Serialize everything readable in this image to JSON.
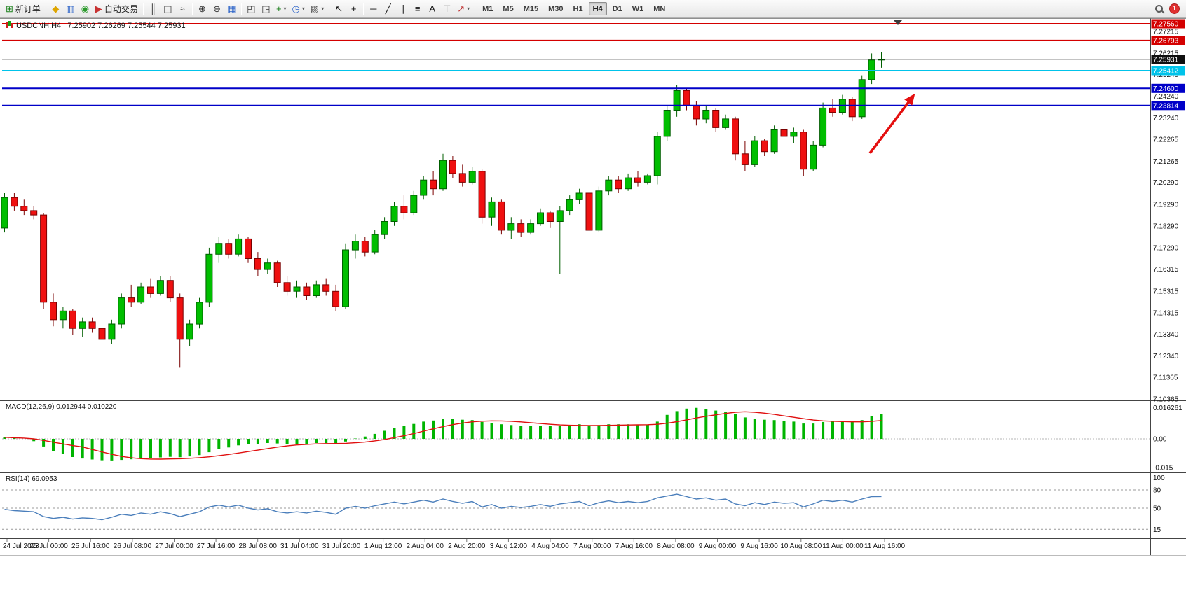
{
  "toolbar": {
    "items": [
      {
        "name": "new-order-button",
        "glyph": "⊞",
        "glyph_color": "#1a7f1a",
        "label": "新订单"
      },
      {
        "sep": true
      },
      {
        "name": "market-watch-button",
        "glyph": "◆",
        "glyph_color": "#dea500"
      },
      {
        "name": "chart-window-button",
        "glyph": "▥",
        "glyph_color": "#2a62c8"
      },
      {
        "name": "terminal-button",
        "glyph": "◉",
        "glyph_color": "#2a9a2a"
      },
      {
        "name": "autotrading-button",
        "glyph": "▶",
        "glyph_color": "#c83232",
        "label": "自动交易"
      },
      {
        "sep": true
      },
      {
        "name": "bar-chart-button",
        "glyph": "║",
        "glyph_color": "#333333"
      },
      {
        "name": "candlestick-chart-button",
        "glyph": "◫",
        "glyph_color": "#333333"
      },
      {
        "name": "line-chart-button",
        "glyph": "≈",
        "glyph_color": "#333333"
      },
      {
        "sep": true
      },
      {
        "name": "zoom-in-button",
        "glyph": "⊕",
        "glyph_color": "#333333"
      },
      {
        "name": "zoom-out-button",
        "glyph": "⊖",
        "glyph_color": "#333333"
      },
      {
        "name": "tile-windows-button",
        "glyph": "▦",
        "glyph_color": "#2a62c8"
      },
      {
        "sep": true
      },
      {
        "name": "auto-arrange-button",
        "glyph": "◰",
        "glyph_color": "#333333"
      },
      {
        "name": "cascade-windows-button",
        "glyph": "◳",
        "glyph_color": "#333333"
      },
      {
        "name": "new-chart-button",
        "glyph": "+",
        "glyph_color": "#1a7f1a",
        "dropdown": true
      },
      {
        "name": "periods-button",
        "glyph": "◷",
        "glyph_color": "#2a62c8",
        "dropdown": true
      },
      {
        "name": "templates-button",
        "glyph": "▨",
        "glyph_color": "#555555",
        "dropdown": true
      },
      {
        "sep": true
      },
      {
        "name": "cursor-button",
        "glyph": "↖",
        "glyph_color": "#111111"
      },
      {
        "name": "crosshair-button",
        "glyph": "+",
        "glyph_color": "#111111"
      },
      {
        "sep": true
      },
      {
        "name": "horizontal-line-button",
        "glyph": "─",
        "glyph_color": "#111111"
      },
      {
        "name": "trendline-button",
        "glyph": "╱",
        "glyph_color": "#111111"
      },
      {
        "name": "equidistant-channel-button",
        "glyph": "∥",
        "glyph_color": "#111111"
      },
      {
        "name": "fibonacci-button",
        "glyph": "≡",
        "glyph_color": "#111111"
      },
      {
        "name": "text-button",
        "glyph": "A",
        "glyph_color": "#111111"
      },
      {
        "name": "text-label-button",
        "glyph": "⊤",
        "glyph_color": "#111111"
      },
      {
        "name": "arrows-button",
        "glyph": "↗",
        "glyph_color": "#bb2222",
        "dropdown": true
      },
      {
        "sep": true
      }
    ],
    "timeframes": [
      "M1",
      "M5",
      "M15",
      "M30",
      "H1",
      "H4",
      "D1",
      "W1",
      "MN"
    ],
    "active_timeframe": "H4",
    "notification_count": "1"
  },
  "chart": {
    "title": "USDCNH,H4   7.25902 7.26269 7.25544 7.25931",
    "symbol": "USDCNH",
    "timeframe": "H4"
  },
  "indicators": {
    "macd_label": "MACD(12,26,9) 0.012944 0.010220",
    "rsi_label": "RSI(14) 69.0953"
  },
  "chart_data": [
    {
      "type": "candlestick",
      "symbol": "USDCNH",
      "timeframe": "H4",
      "ohlc_current": {
        "open": 7.25902,
        "high": 7.26269,
        "low": 7.25544,
        "close": 7.25931
      },
      "y_range": [
        7.10365,
        7.2756
      ],
      "up_color": "#00be00",
      "down_color": "#ef1010",
      "y_ticks": [
        "7.27215",
        "7.26215",
        "7.25240",
        "7.24240",
        "7.23240",
        "7.22265",
        "7.21265",
        "7.20290",
        "7.19290",
        "7.18290",
        "7.17290",
        "7.16315",
        "7.15315",
        "7.14315",
        "7.13340",
        "7.12340",
        "7.11365",
        "7.10365"
      ],
      "x_labels": [
        "24 Jul 2023",
        "25 Jul 00:00",
        "25 Jul 16:00",
        "26 Jul 08:00",
        "27 Jul 00:00",
        "27 Jul 16:00",
        "28 Jul 08:00",
        "31 Jul 04:00",
        "31 Jul 20:00",
        "1 Aug 12:00",
        "2 Aug 04:00",
        "2 Aug 20:00",
        "3 Aug 12:00",
        "4 Aug 04:00",
        "7 Aug 00:00",
        "7 Aug 16:00",
        "8 Aug 08:00",
        "9 Aug 00:00",
        "9 Aug 16:00",
        "10 Aug 08:00",
        "11 Aug 00:00",
        "11 Aug 16:00"
      ],
      "levels": [
        {
          "label": "7.27560",
          "color": "#d40000",
          "width": 2
        },
        {
          "label": "7.26793",
          "color": "#d40000",
          "width": 2
        },
        {
          "label": "7.25931",
          "color": "#101010",
          "width": 1,
          "current": true
        },
        {
          "label": "7.25412",
          "color": "#00c3ea",
          "width": 2
        },
        {
          "label": "7.24600",
          "color": "#0000c8",
          "width": 2
        },
        {
          "label": "7.23814",
          "color": "#0000c8",
          "width": 2
        }
      ],
      "candles": [
        [
          7.182,
          7.198,
          7.18,
          7.196
        ],
        [
          7.196,
          7.198,
          7.19,
          7.192
        ],
        [
          7.192,
          7.195,
          7.188,
          7.19
        ],
        [
          7.19,
          7.192,
          7.186,
          7.188
        ],
        [
          7.188,
          7.189,
          7.145,
          7.148
        ],
        [
          7.148,
          7.152,
          7.137,
          7.14
        ],
        [
          7.14,
          7.146,
          7.136,
          7.144
        ],
        [
          7.144,
          7.145,
          7.133,
          7.136
        ],
        [
          7.136,
          7.141,
          7.132,
          7.139
        ],
        [
          7.139,
          7.141,
          7.134,
          7.136
        ],
        [
          7.136,
          7.142,
          7.128,
          7.131
        ],
        [
          7.131,
          7.14,
          7.129,
          7.138
        ],
        [
          7.138,
          7.152,
          7.136,
          7.15
        ],
        [
          7.15,
          7.156,
          7.146,
          7.148
        ],
        [
          7.148,
          7.157,
          7.147,
          7.155
        ],
        [
          7.155,
          7.159,
          7.15,
          7.152
        ],
        [
          7.152,
          7.16,
          7.151,
          7.158
        ],
        [
          7.158,
          7.16,
          7.148,
          7.15
        ],
        [
          7.15,
          7.152,
          7.118,
          7.131
        ],
        [
          7.131,
          7.14,
          7.128,
          7.138
        ],
        [
          7.138,
          7.15,
          7.136,
          7.148
        ],
        [
          7.148,
          7.173,
          7.146,
          7.17
        ],
        [
          7.17,
          7.178,
          7.166,
          7.175
        ],
        [
          7.175,
          7.177,
          7.168,
          7.17
        ],
        [
          7.17,
          7.179,
          7.169,
          7.177
        ],
        [
          7.177,
          7.178,
          7.166,
          7.168
        ],
        [
          7.168,
          7.171,
          7.16,
          7.163
        ],
        [
          7.163,
          7.168,
          7.161,
          7.166
        ],
        [
          7.166,
          7.167,
          7.155,
          7.157
        ],
        [
          7.157,
          7.16,
          7.151,
          7.153
        ],
        [
          7.153,
          7.158,
          7.15,
          7.155
        ],
        [
          7.155,
          7.157,
          7.149,
          7.151
        ],
        [
          7.151,
          7.158,
          7.15,
          7.156
        ],
        [
          7.156,
          7.159,
          7.151,
          7.153
        ],
        [
          7.153,
          7.156,
          7.144,
          7.146
        ],
        [
          7.146,
          7.175,
          7.145,
          7.172
        ],
        [
          7.172,
          7.179,
          7.168,
          7.176
        ],
        [
          7.176,
          7.178,
          7.169,
          7.171
        ],
        [
          7.171,
          7.181,
          7.17,
          7.179
        ],
        [
          7.179,
          7.187,
          7.177,
          7.185
        ],
        [
          7.185,
          7.194,
          7.183,
          7.192
        ],
        [
          7.192,
          7.197,
          7.186,
          7.189
        ],
        [
          7.189,
          7.199,
          7.188,
          7.197
        ],
        [
          7.197,
          7.206,
          7.195,
          7.204
        ],
        [
          7.204,
          7.208,
          7.197,
          7.2
        ],
        [
          7.2,
          7.216,
          7.199,
          7.213
        ],
        [
          7.213,
          7.215,
          7.205,
          7.207
        ],
        [
          7.207,
          7.211,
          7.201,
          7.203
        ],
        [
          7.203,
          7.21,
          7.202,
          7.208
        ],
        [
          7.208,
          7.209,
          7.184,
          7.187
        ],
        [
          7.187,
          7.196,
          7.183,
          7.194
        ],
        [
          7.194,
          7.195,
          7.179,
          7.181
        ],
        [
          7.181,
          7.187,
          7.177,
          7.184
        ],
        [
          7.184,
          7.186,
          7.178,
          7.18
        ],
        [
          7.18,
          7.186,
          7.179,
          7.184
        ],
        [
          7.184,
          7.191,
          7.183,
          7.189
        ],
        [
          7.189,
          7.19,
          7.182,
          7.185
        ],
        [
          7.185,
          7.192,
          7.161,
          7.19
        ],
        [
          7.19,
          7.197,
          7.188,
          7.195
        ],
        [
          7.195,
          7.2,
          7.193,
          7.198
        ],
        [
          7.198,
          7.199,
          7.178,
          7.181
        ],
        [
          7.181,
          7.201,
          7.18,
          7.199
        ],
        [
          7.199,
          7.206,
          7.197,
          7.204
        ],
        [
          7.204,
          7.206,
          7.198,
          7.2
        ],
        [
          7.2,
          7.207,
          7.199,
          7.205
        ],
        [
          7.205,
          7.208,
          7.201,
          7.203
        ],
        [
          7.203,
          7.207,
          7.202,
          7.206
        ],
        [
          7.206,
          7.226,
          7.202,
          7.224
        ],
        [
          7.224,
          7.238,
          7.222,
          7.236
        ],
        [
          7.236,
          7.2475,
          7.233,
          7.245
        ],
        [
          7.245,
          7.246,
          7.236,
          7.238
        ],
        [
          7.238,
          7.24,
          7.229,
          7.232
        ],
        [
          7.232,
          7.238,
          7.23,
          7.236
        ],
        [
          7.236,
          7.237,
          7.226,
          7.228
        ],
        [
          7.228,
          7.234,
          7.227,
          7.232
        ],
        [
          7.232,
          7.233,
          7.213,
          7.216
        ],
        [
          7.216,
          7.222,
          7.208,
          7.211
        ],
        [
          7.211,
          7.224,
          7.21,
          7.222
        ],
        [
          7.222,
          7.223,
          7.215,
          7.217
        ],
        [
          7.217,
          7.229,
          7.216,
          7.227
        ],
        [
          7.227,
          7.23,
          7.222,
          7.224
        ],
        [
          7.224,
          7.228,
          7.221,
          7.226
        ],
        [
          7.226,
          7.227,
          7.206,
          7.209
        ],
        [
          7.209,
          7.222,
          7.208,
          7.22
        ],
        [
          7.22,
          7.2395,
          7.219,
          7.237
        ],
        [
          7.237,
          7.241,
          7.233,
          7.235
        ],
        [
          7.235,
          7.243,
          7.234,
          7.241
        ],
        [
          7.241,
          7.242,
          7.231,
          7.233
        ],
        [
          7.233,
          7.252,
          7.232,
          7.25
        ],
        [
          7.25,
          7.262,
          7.248,
          7.259
        ],
        [
          7.25902,
          7.26269,
          7.25544,
          7.25931
        ]
      ]
    },
    {
      "type": "bar",
      "name": "MACD(12,26,9)",
      "main_value": 0.012944,
      "signal_value": 0.01022,
      "axis_labels": [
        "0.016261",
        "0.00",
        "-0.015"
      ],
      "bar_color": "#00b400",
      "signal_color": "#e01010",
      "values": [
        0.0008,
        0.0004,
        0.0,
        -0.0012,
        -0.004,
        -0.0065,
        -0.008,
        -0.0095,
        -0.0103,
        -0.0108,
        -0.0112,
        -0.0113,
        -0.011,
        -0.0107,
        -0.0104,
        -0.0101,
        -0.0097,
        -0.0094,
        -0.0096,
        -0.0092,
        -0.0085,
        -0.007,
        -0.0055,
        -0.0045,
        -0.0034,
        -0.0028,
        -0.0026,
        -0.0022,
        -0.0024,
        -0.0028,
        -0.0026,
        -0.0026,
        -0.0022,
        -0.0022,
        -0.0026,
        -0.0014,
        0.0002,
        0.0012,
        0.0026,
        0.0042,
        0.0058,
        0.0068,
        0.0078,
        0.009,
        0.0096,
        0.0106,
        0.0106,
        0.01,
        0.0098,
        0.0088,
        0.0084,
        0.0076,
        0.0072,
        0.0068,
        0.0066,
        0.0068,
        0.0066,
        0.0068,
        0.0072,
        0.0076,
        0.007,
        0.0072,
        0.0076,
        0.0076,
        0.0076,
        0.0074,
        0.0074,
        0.009,
        0.0125,
        0.0145,
        0.0158,
        0.0162,
        0.0155,
        0.0148,
        0.014,
        0.0128,
        0.0112,
        0.0105,
        0.01,
        0.0098,
        0.0094,
        0.009,
        0.008,
        0.008,
        0.0088,
        0.009,
        0.0092,
        0.0088,
        0.0098,
        0.0118,
        0.0129
      ]
    },
    {
      "type": "line",
      "name": "RSI(14)",
      "value": 69.0953,
      "axis_labels": [
        "100",
        "80",
        "50",
        "15"
      ],
      "level_lines": [
        80,
        50,
        15
      ],
      "line_color": "#4a7ebb",
      "values": [
        48,
        46,
        45,
        44,
        36,
        33,
        35,
        32,
        34,
        33,
        31,
        35,
        40,
        38,
        42,
        40,
        44,
        41,
        36,
        40,
        44,
        52,
        55,
        52,
        55,
        50,
        47,
        49,
        44,
        42,
        44,
        42,
        45,
        43,
        40,
        50,
        53,
        50,
        54,
        57,
        60,
        57,
        60,
        63,
        60,
        65,
        61,
        58,
        61,
        52,
        56,
        50,
        53,
        51,
        53,
        56,
        53,
        57,
        59,
        61,
        54,
        59,
        62,
        59,
        61,
        59,
        61,
        67,
        70,
        73,
        69,
        65,
        67,
        63,
        65,
        57,
        54,
        59,
        56,
        60,
        58,
        59,
        52,
        57,
        63,
        61,
        63,
        60,
        65,
        69,
        69.1
      ]
    }
  ],
  "annotations": {
    "arrow_color": "#e41010"
  }
}
